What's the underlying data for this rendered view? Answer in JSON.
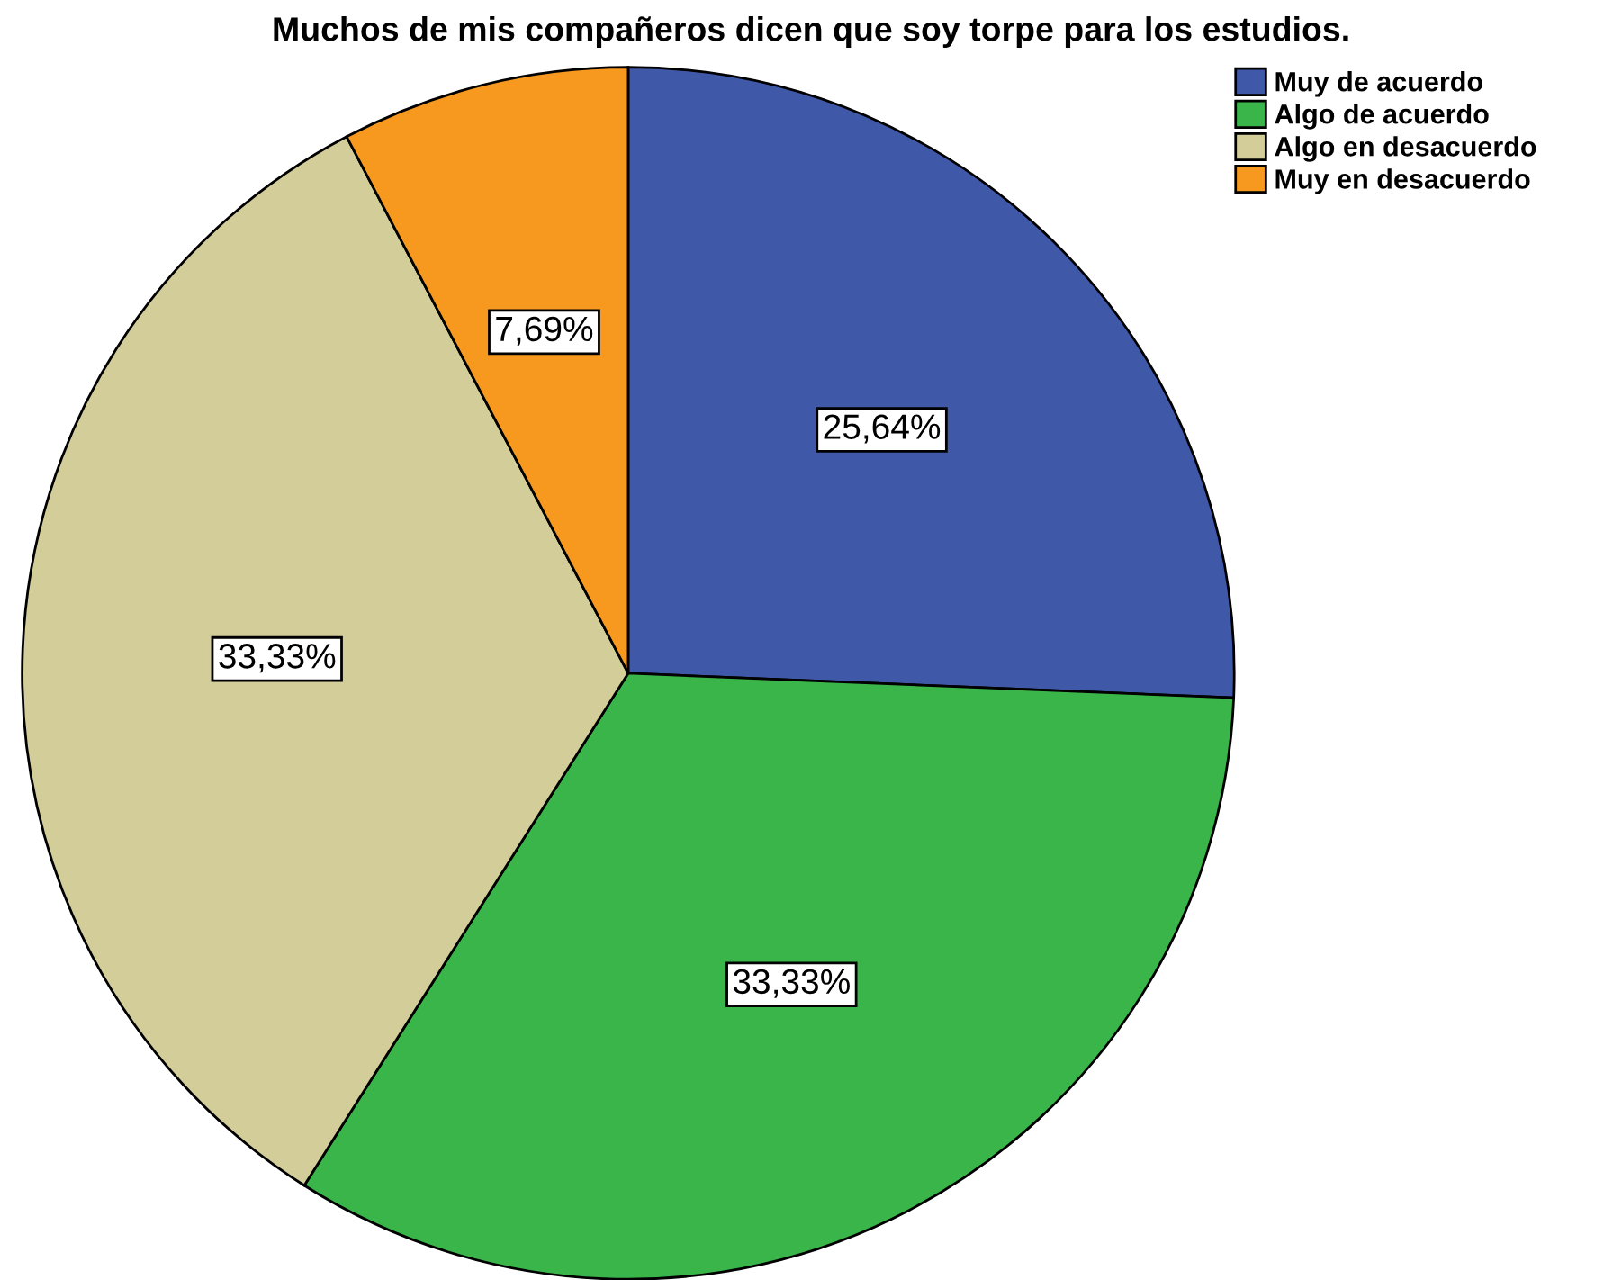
{
  "chart_data": {
    "type": "pie",
    "title": "Muchos de mis compañeros dicen que soy torpe para los estudios.",
    "categories": [
      "Muy de acuerdo",
      "Algo de acuerdo",
      "Algo en desacuerdo",
      "Muy en desacuerdo"
    ],
    "values": [
      25.64,
      33.33,
      33.33,
      7.69
    ],
    "value_labels": [
      "25,64%",
      "33,33%",
      "33,33%",
      "7,69%"
    ],
    "colors": [
      "#3f59a8",
      "#3ab54a",
      "#d3cd99",
      "#f7991f"
    ],
    "legend": "top right"
  }
}
